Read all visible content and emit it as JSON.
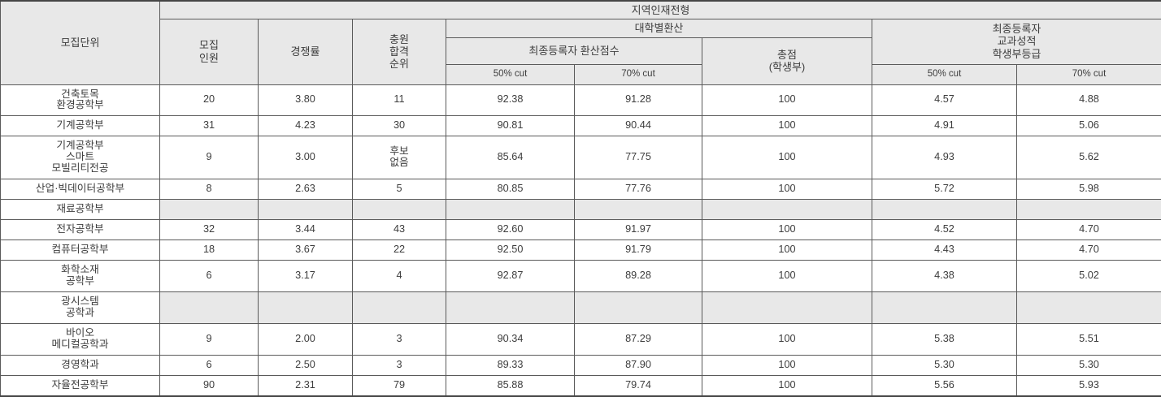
{
  "table": {
    "headers": {
      "unit": "모집단위",
      "admission_type": "지역인재전형",
      "quota": "모집\n인원",
      "ratio": "경쟁률",
      "waitlist_rank": "충원\n합격\n순위",
      "univ_conversion": "대학별환산",
      "final_conversion_score": "최종등록자 환산점수",
      "conv_cut50": "50% cut",
      "conv_cut70": "70% cut",
      "total_score": "총점\n(학생부)",
      "final_grade": "최종등록자\n교과성적\n학생부등급",
      "grade_cut50": "50% cut",
      "grade_cut70": "70% cut"
    },
    "rows": [
      {
        "unit": "건축토목\n환경공학부",
        "quota": "20",
        "ratio": "3.80",
        "waitlist": "11",
        "conv_cut50": "92.38",
        "conv_cut70": "91.28",
        "total": "100",
        "grade_cut50": "4.57",
        "grade_cut70": "4.88",
        "empty": false
      },
      {
        "unit": "기계공학부",
        "quota": "31",
        "ratio": "4.23",
        "waitlist": "30",
        "conv_cut50": "90.81",
        "conv_cut70": "90.44",
        "total": "100",
        "grade_cut50": "4.91",
        "grade_cut70": "5.06",
        "empty": false
      },
      {
        "unit": "기계공학부\n스마트\n모빌리티전공",
        "quota": "9",
        "ratio": "3.00",
        "waitlist": "후보\n없음",
        "conv_cut50": "85.64",
        "conv_cut70": "77.75",
        "total": "100",
        "grade_cut50": "4.93",
        "grade_cut70": "5.62",
        "empty": false
      },
      {
        "unit": "산업·빅데이터공학부",
        "quota": "8",
        "ratio": "2.63",
        "waitlist": "5",
        "conv_cut50": "80.85",
        "conv_cut70": "77.76",
        "total": "100",
        "grade_cut50": "5.72",
        "grade_cut70": "5.98",
        "empty": false
      },
      {
        "unit": "재료공학부",
        "quota": "",
        "ratio": "",
        "waitlist": "",
        "conv_cut50": "",
        "conv_cut70": "",
        "total": "",
        "grade_cut50": "",
        "grade_cut70": "",
        "empty": true
      },
      {
        "unit": "전자공학부",
        "quota": "32",
        "ratio": "3.44",
        "waitlist": "43",
        "conv_cut50": "92.60",
        "conv_cut70": "91.97",
        "total": "100",
        "grade_cut50": "4.52",
        "grade_cut70": "4.70",
        "empty": false
      },
      {
        "unit": "컴퓨터공학부",
        "quota": "18",
        "ratio": "3.67",
        "waitlist": "22",
        "conv_cut50": "92.50",
        "conv_cut70": "91.79",
        "total": "100",
        "grade_cut50": "4.43",
        "grade_cut70": "4.70",
        "empty": false
      },
      {
        "unit": "화학소재\n공학부",
        "quota": "6",
        "ratio": "3.17",
        "waitlist": "4",
        "conv_cut50": "92.87",
        "conv_cut70": "89.28",
        "total": "100",
        "grade_cut50": "4.38",
        "grade_cut70": "5.02",
        "empty": false
      },
      {
        "unit": "광시스템\n공학과",
        "quota": "",
        "ratio": "",
        "waitlist": "",
        "conv_cut50": "",
        "conv_cut70": "",
        "total": "",
        "grade_cut50": "",
        "grade_cut70": "",
        "empty": true
      },
      {
        "unit": "바이오\n메디컬공학과",
        "quota": "9",
        "ratio": "2.00",
        "waitlist": "3",
        "conv_cut50": "90.34",
        "conv_cut70": "87.29",
        "total": "100",
        "grade_cut50": "5.38",
        "grade_cut70": "5.51",
        "empty": false
      },
      {
        "unit": "경영학과",
        "quota": "6",
        "ratio": "2.50",
        "waitlist": "3",
        "conv_cut50": "89.33",
        "conv_cut70": "87.90",
        "total": "100",
        "grade_cut50": "5.30",
        "grade_cut70": "5.30",
        "empty": false
      },
      {
        "unit": "자율전공학부",
        "quota": "90",
        "ratio": "2.31",
        "waitlist": "79",
        "conv_cut50": "85.88",
        "conv_cut70": "79.74",
        "total": "100",
        "grade_cut50": "5.56",
        "grade_cut70": "5.93",
        "empty": false
      }
    ]
  },
  "colors": {
    "header_bg": "#e8e8e8",
    "empty_cell_bg": "#e8e8e8",
    "border": "#5a5a5a",
    "text": "#3d3d3d"
  }
}
